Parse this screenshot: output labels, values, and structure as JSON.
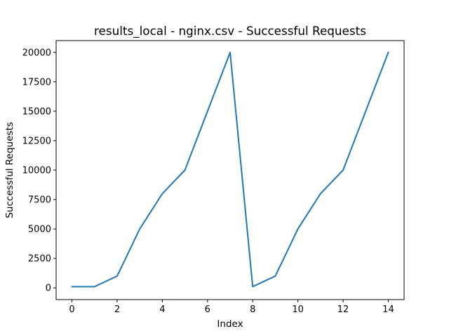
{
  "chart_data": {
    "type": "line",
    "title": "results_local - nginx.csv - Successful Requests",
    "xlabel": "Index",
    "ylabel": "Successful Requests",
    "xlim": [
      -0.7,
      14.7
    ],
    "ylim": [
      -1000,
      21000
    ],
    "xticks": [
      0,
      2,
      4,
      6,
      8,
      10,
      12,
      14
    ],
    "yticks": [
      0,
      2500,
      5000,
      7500,
      10000,
      12500,
      15000,
      17500,
      20000
    ],
    "grid": false,
    "series": [
      {
        "color": "#1f77b4",
        "x": [
          0,
          1,
          2,
          3,
          4,
          5,
          6,
          7,
          8,
          9,
          10,
          11,
          12,
          13,
          14
        ],
        "values": [
          100,
          100,
          1000,
          5000,
          8000,
          10000,
          15000,
          20000,
          100,
          1000,
          5000,
          8000,
          10000,
          15000,
          20000
        ]
      }
    ]
  }
}
